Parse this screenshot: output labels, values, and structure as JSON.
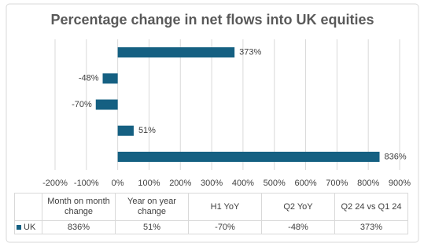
{
  "chart_data": {
    "type": "bar",
    "orientation": "horizontal",
    "title": "Percentage change in net flows into UK equities",
    "categories": [
      "Month on month change",
      "Year on year change",
      "H1 YoY",
      "Q2 YoY",
      "Q2 24 vs Q1 24"
    ],
    "series": [
      {
        "name": "UK",
        "color": "#156082",
        "values": [
          836,
          51,
          -70,
          -48,
          373
        ],
        "value_labels": [
          "836%",
          "51%",
          "-70%",
          "-48%",
          "373%"
        ]
      }
    ],
    "xlim": [
      -200,
      900
    ],
    "xticks": [
      {
        "value": -200,
        "label": "-200%"
      },
      {
        "value": -100,
        "label": "-100%"
      },
      {
        "value": 0,
        "label": "0%"
      },
      {
        "value": 100,
        "label": "100%"
      },
      {
        "value": 200,
        "label": "200%"
      },
      {
        "value": 300,
        "label": "300%"
      },
      {
        "value": 400,
        "label": "400%"
      },
      {
        "value": 500,
        "label": "500%"
      },
      {
        "value": 600,
        "label": "600%"
      },
      {
        "value": 700,
        "label": "700%"
      },
      {
        "value": 800,
        "label": "800%"
      },
      {
        "value": 900,
        "label": "900%"
      }
    ],
    "grid": true,
    "data_table": true
  }
}
